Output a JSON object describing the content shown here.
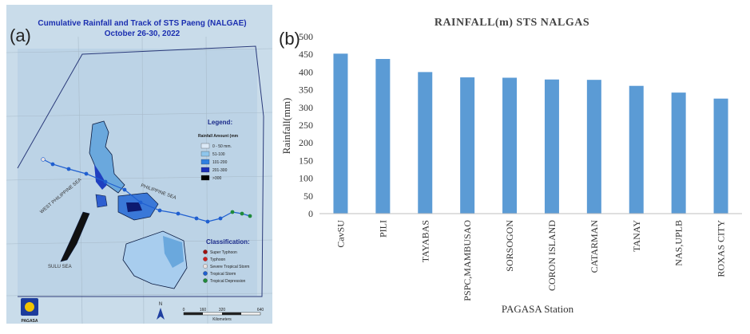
{
  "panel_a": {
    "label": "(a)",
    "title_line1": "Cumulative Rainfall and Track of STS Paeng (NALGAE)",
    "title_line2": "October 26-30, 2022",
    "legend_title": "Legend:",
    "legend_subtitle": "Rainfall Amount (mm",
    "legend_items": [
      "0 - 50 mm.",
      "51-100",
      "101-200",
      "201-300",
      ">300"
    ],
    "legend_colors": [
      "#dbe9f7",
      "#8fc6ec",
      "#2f7fe0",
      "#1b2fb8",
      "#000000"
    ],
    "classification_title": "Classification:",
    "classification_items": [
      "Super Typhoon",
      "Typhoon",
      "Severe Tropical Storm",
      "Tropical Storm",
      "Tropical Depression"
    ],
    "classification_colors": [
      "#a01010",
      "#d02020",
      "#e8e0e0",
      "#1f5fd0",
      "#1f8a3a"
    ],
    "sea_labels": [
      "WEST PHILIPPINE SEA",
      "PHILIPPINE SEA",
      "SULU SEA"
    ],
    "logo_text": "PAGASA",
    "north_label": "N",
    "scale_ticks": [
      "0",
      "160",
      "320",
      "640"
    ],
    "scale_unit": "Kilometers"
  },
  "panel_b": {
    "label": "(b)"
  },
  "chart_data": {
    "type": "bar",
    "title": "RAINFALL(m) STS NALGAS",
    "xlabel": "PAGASA Station",
    "ylabel": "Rainfall(mm)",
    "categories": [
      "CavSU",
      "PILI",
      "TAYABAS",
      "PSPC,MAMBUSAO",
      "SORSOGON",
      "CORON ISLAND",
      "CATARMAN",
      "TANAY",
      "NAS,UPLB",
      "ROXAS CITY"
    ],
    "values": [
      452,
      437,
      400,
      385,
      384,
      379,
      378,
      361,
      342,
      325
    ],
    "ylim": [
      0,
      500
    ],
    "yticks": [
      0,
      50,
      100,
      150,
      200,
      250,
      300,
      350,
      400,
      450,
      500
    ],
    "bar_color": "#5b9bd5",
    "grid": false,
    "legend": false
  }
}
